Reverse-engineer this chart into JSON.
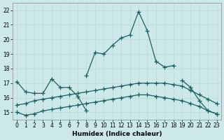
{
  "xlabel": "Humidex (Indice chaleur)",
  "xlim": [
    -0.5,
    23.5
  ],
  "ylim": [
    14.5,
    22.5
  ],
  "yticks": [
    15,
    16,
    17,
    18,
    19,
    20,
    21,
    22
  ],
  "xticks": [
    0,
    1,
    2,
    3,
    4,
    5,
    6,
    7,
    8,
    9,
    10,
    11,
    12,
    13,
    14,
    15,
    16,
    17,
    18,
    19,
    20,
    21,
    22,
    23
  ],
  "bg_color": "#cce8e8",
  "grid_color": "#aacccc",
  "line_color": "#1a6060",
  "lines": [
    {
      "x": [
        0,
        1,
        2,
        3,
        4,
        5,
        6,
        7,
        8
      ],
      "y": [
        17.1,
        16.4,
        16.3,
        16.3,
        17.3,
        16.7,
        16.7,
        16.1,
        15.1
      ]
    },
    {
      "x": [
        8,
        9,
        10,
        11,
        12,
        13,
        14,
        15,
        16,
        17,
        18
      ],
      "y": [
        17.5,
        19.1,
        19.0,
        19.6,
        20.1,
        20.3,
        21.9,
        20.6,
        18.5,
        18.1,
        18.2
      ]
    },
    {
      "x": [
        19,
        20,
        21,
        22,
        23
      ],
      "y": [
        17.2,
        16.7,
        15.8,
        15.1,
        14.9
      ]
    },
    {
      "x": [
        0,
        1,
        2,
        3,
        4,
        5,
        6,
        7,
        8,
        9,
        10,
        11,
        12,
        13,
        14,
        15,
        16,
        17,
        18,
        19,
        20,
        21,
        22,
        23
      ],
      "y": [
        15.5,
        15.6,
        15.8,
        15.9,
        16.0,
        16.1,
        16.2,
        16.3,
        16.4,
        16.5,
        16.6,
        16.7,
        16.8,
        16.9,
        17.0,
        17.0,
        17.0,
        17.0,
        16.9,
        16.8,
        16.5,
        16.2,
        15.9,
        15.6
      ]
    },
    {
      "x": [
        0,
        1,
        2,
        3,
        4,
        5,
        6,
        7,
        8,
        9,
        10,
        11,
        12,
        13,
        14,
        15,
        16,
        17,
        18,
        19,
        20,
        21,
        22,
        23
      ],
      "y": [
        15.0,
        14.8,
        14.9,
        15.1,
        15.2,
        15.3,
        15.4,
        15.5,
        15.6,
        15.7,
        15.8,
        15.9,
        16.0,
        16.1,
        16.2,
        16.2,
        16.1,
        16.0,
        15.9,
        15.8,
        15.6,
        15.4,
        15.1,
        14.9
      ]
    }
  ]
}
